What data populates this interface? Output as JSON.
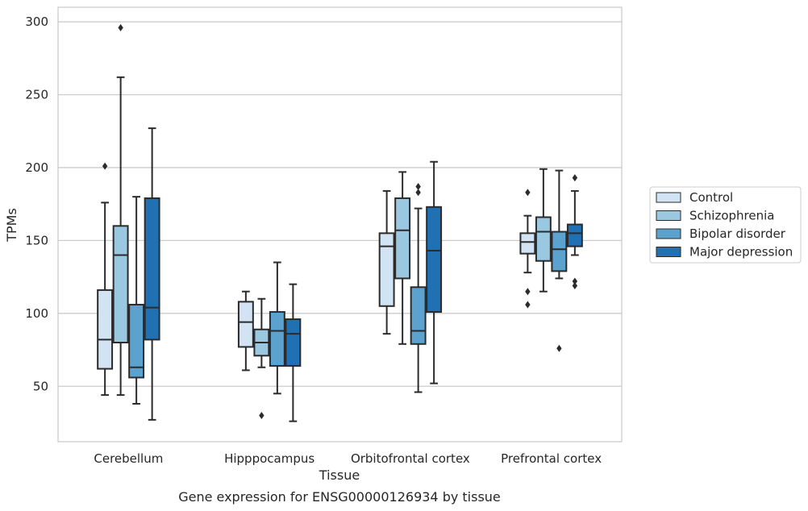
{
  "chart_data": {
    "type": "box",
    "title": "Gene expression for ENSG00000126934 by tissue",
    "xlabel": "Tissue",
    "ylabel": "TPMs",
    "ylim": [
      12,
      310
    ],
    "yticks": [
      50,
      100,
      150,
      200,
      250,
      300
    ],
    "grid": "horizontal",
    "legend_position": "right",
    "categories": [
      "Cerebellum",
      "Hipppocampus",
      "Orbitofrontal cortex",
      "Prefrontal cortex"
    ],
    "series": [
      {
        "name": "Control",
        "color": "#d2e3f3",
        "boxes": [
          {
            "whisker_low": 44,
            "q1": 62,
            "median": 82,
            "q3": 116,
            "whisker_high": 176,
            "outliers": [
              201
            ]
          },
          {
            "whisker_low": 61,
            "q1": 77,
            "median": 94,
            "q3": 108,
            "whisker_high": 115,
            "outliers": []
          },
          {
            "whisker_low": 86,
            "q1": 105,
            "median": 146,
            "q3": 155,
            "whisker_high": 184,
            "outliers": []
          },
          {
            "whisker_low": 128,
            "q1": 141,
            "median": 149,
            "q3": 155,
            "whisker_high": 167,
            "outliers": [
              183,
              115,
              106
            ]
          }
        ]
      },
      {
        "name": "Schizophrenia",
        "color": "#9ac8e0",
        "boxes": [
          {
            "whisker_low": 44,
            "q1": 80,
            "median": 140,
            "q3": 160,
            "whisker_high": 262,
            "outliers": [
              296
            ]
          },
          {
            "whisker_low": 63,
            "q1": 71,
            "median": 80,
            "q3": 89,
            "whisker_high": 110,
            "outliers": [
              30
            ]
          },
          {
            "whisker_low": 79,
            "q1": 124,
            "median": 157,
            "q3": 179,
            "whisker_high": 197,
            "outliers": []
          },
          {
            "whisker_low": 115,
            "q1": 136,
            "median": 156,
            "q3": 166,
            "whisker_high": 199,
            "outliers": []
          }
        ]
      },
      {
        "name": "Bipolar disorder",
        "color": "#5ba2cf",
        "boxes": [
          {
            "whisker_low": 38,
            "q1": 56,
            "median": 63,
            "q3": 106,
            "whisker_high": 180,
            "outliers": []
          },
          {
            "whisker_low": 45,
            "q1": 64,
            "median": 88,
            "q3": 101,
            "whisker_high": 135,
            "outliers": []
          },
          {
            "whisker_low": 46,
            "q1": 79,
            "median": 88,
            "q3": 118,
            "whisker_high": 172,
            "outliers": [
              187,
              183
            ]
          },
          {
            "whisker_low": 124,
            "q1": 129,
            "median": 144,
            "q3": 156,
            "whisker_high": 198,
            "outliers": [
              76
            ]
          }
        ]
      },
      {
        "name": "Major depression",
        "color": "#2070b4",
        "boxes": [
          {
            "whisker_low": 27,
            "q1": 82,
            "median": 104,
            "q3": 179,
            "whisker_high": 227,
            "outliers": []
          },
          {
            "whisker_low": 26,
            "q1": 64,
            "median": 86,
            "q3": 96,
            "whisker_high": 120,
            "outliers": []
          },
          {
            "whisker_low": 52,
            "q1": 101,
            "median": 143,
            "q3": 173,
            "whisker_high": 204,
            "outliers": []
          },
          {
            "whisker_low": 140,
            "q1": 146,
            "median": 155,
            "q3": 161,
            "whisker_high": 184,
            "outliers": [
              193,
              122,
              119
            ]
          }
        ]
      }
    ]
  }
}
